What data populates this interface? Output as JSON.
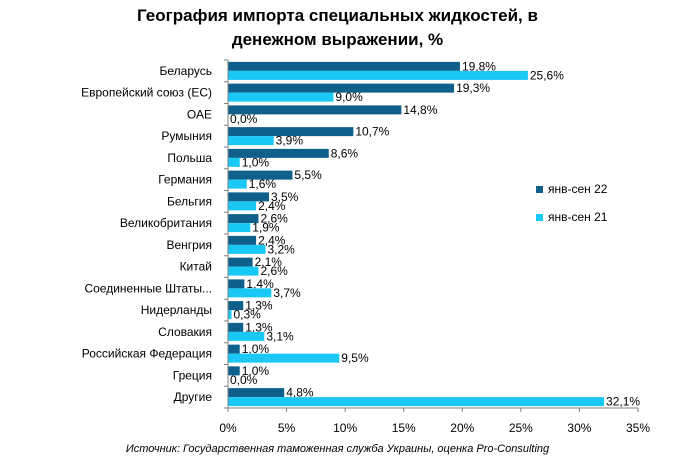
{
  "chart_data": {
    "type": "bar",
    "orientation": "horizontal",
    "title_lines": [
      "География импорта специальных жидкостей, в",
      "денежном выражении, %"
    ],
    "categories": [
      "Беларусь",
      "Европейский союз (ЕС)",
      "ОАЕ",
      "Румыния",
      "Польша",
      "Германия",
      "Бельгия",
      "Великобритания",
      "Венгрия",
      "Китай",
      "Соединенные Штаты...",
      "Нидерланды",
      "Словакия",
      "Российская Федерация",
      "Греция",
      "Другие"
    ],
    "series": [
      {
        "name": "янв-сен 22",
        "color": "#0e5f8a",
        "values": [
          19.8,
          19.3,
          14.8,
          10.7,
          8.6,
          5.5,
          3.5,
          2.6,
          2.4,
          2.1,
          1.4,
          1.3,
          1.3,
          1.0,
          1.0,
          4.8
        ],
        "labels": [
          "19,8%",
          "19,3%",
          "14,8%",
          "10,7%",
          "8,6%",
          "5,5%",
          "3,5%",
          "2,6%",
          "2,4%",
          "2,1%",
          "1,4%",
          "1,3%",
          "1,3%",
          "1,0%",
          "1,0%",
          "4,8%"
        ]
      },
      {
        "name": "янв-сен 21",
        "color": "#19c8f5",
        "values": [
          25.6,
          9.0,
          0.0,
          3.9,
          1.0,
          1.6,
          2.4,
          1.9,
          3.2,
          2.6,
          3.7,
          0.3,
          3.1,
          9.5,
          0.0,
          32.1
        ],
        "labels": [
          "25,6%",
          "9,0%",
          "0,0%",
          "3,9%",
          "1,0%",
          "1,6%",
          "2,4%",
          "1,9%",
          "3,2%",
          "2,6%",
          "3,7%",
          "0,3%",
          "3,1%",
          "9,5%",
          "0,0%",
          "32,1%"
        ]
      }
    ],
    "xlim": [
      0,
      35
    ],
    "xticks": [
      0,
      5,
      10,
      15,
      20,
      25,
      30,
      35
    ],
    "xtick_labels": [
      "0%",
      "5%",
      "10%",
      "15%",
      "20%",
      "25%",
      "30%",
      "35%"
    ],
    "grid": false,
    "legend_position": "right"
  },
  "source_note": "Источник: Государственная таможенная служба Украины, оценка Pro-Consulting"
}
